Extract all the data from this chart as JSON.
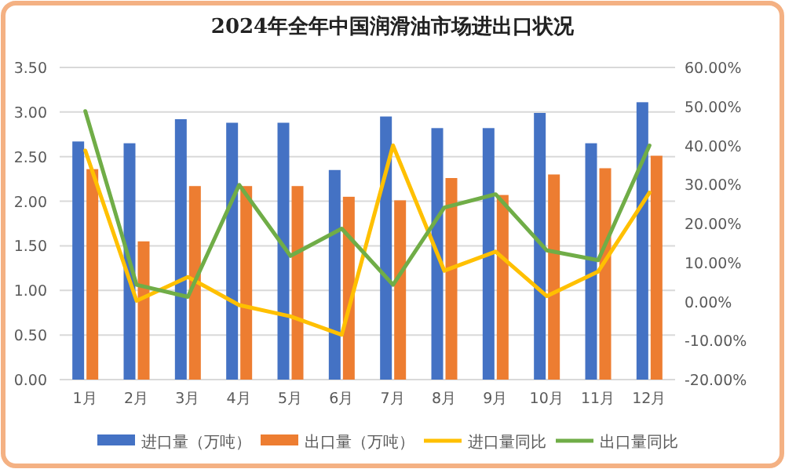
{
  "chart_data": {
    "type": "bar",
    "title": "2024年全年中国润滑油市场进出口状况",
    "categories": [
      "1月",
      "2月",
      "3月",
      "4月",
      "5月",
      "6月",
      "7月",
      "8月",
      "9月",
      "10月",
      "11月",
      "12月"
    ],
    "series": [
      {
        "name": "进口量（万吨）",
        "color": "#4472c4",
        "values": [
          2.67,
          2.65,
          2.92,
          2.88,
          2.88,
          2.35,
          2.95,
          2.82,
          2.82,
          2.99,
          2.65,
          3.11
        ]
      },
      {
        "name": "出口量（万吨）",
        "color": "#ed7d31",
        "values": [
          2.36,
          1.55,
          2.17,
          2.17,
          2.17,
          2.05,
          2.01,
          2.26,
          2.07,
          2.3,
          2.37,
          2.51
        ]
      },
      {
        "name": "进口量同比",
        "type": "line",
        "axis": "y2",
        "color": "#ffc000",
        "values": [
          38.7,
          0.2,
          6.3,
          -0.9,
          -3.8,
          -8.5,
          40.0,
          7.9,
          12.8,
          1.4,
          7.7,
          27.9
        ]
      },
      {
        "name": "出口量同比",
        "type": "line",
        "axis": "y2",
        "color": "#70ad47",
        "values": [
          48.8,
          4.3,
          1.2,
          29.9,
          11.7,
          18.7,
          4.3,
          24.1,
          27.5,
          13.1,
          10.6,
          40.0
        ]
      }
    ],
    "ylim": [
      0,
      3.5
    ],
    "yticks": [
      {
        "value": 0,
        "label": "0.00"
      },
      {
        "value": 0.5,
        "label": "0.50"
      },
      {
        "value": 1,
        "label": "1.00"
      },
      {
        "value": 1.5,
        "label": "1.50"
      },
      {
        "value": 2,
        "label": "2.00"
      },
      {
        "value": 2.5,
        "label": "2.50"
      },
      {
        "value": 3,
        "label": "3.00"
      },
      {
        "value": 3.5,
        "label": "3.50"
      }
    ],
    "y2lim": [
      -20,
      60
    ],
    "y2ticks": [
      {
        "value": -20,
        "label": "-20.00%"
      },
      {
        "value": -10,
        "label": "-10.00%"
      },
      {
        "value": 0,
        "label": "0.00%"
      },
      {
        "value": 10,
        "label": "10.00%"
      },
      {
        "value": 20,
        "label": "20.00%"
      },
      {
        "value": 30,
        "label": "30.00%"
      },
      {
        "value": 40,
        "label": "40.00%"
      },
      {
        "value": 50,
        "label": "50.00%"
      },
      {
        "value": 60,
        "label": "60.00%"
      }
    ],
    "grid": "y",
    "legend": "bottom"
  }
}
